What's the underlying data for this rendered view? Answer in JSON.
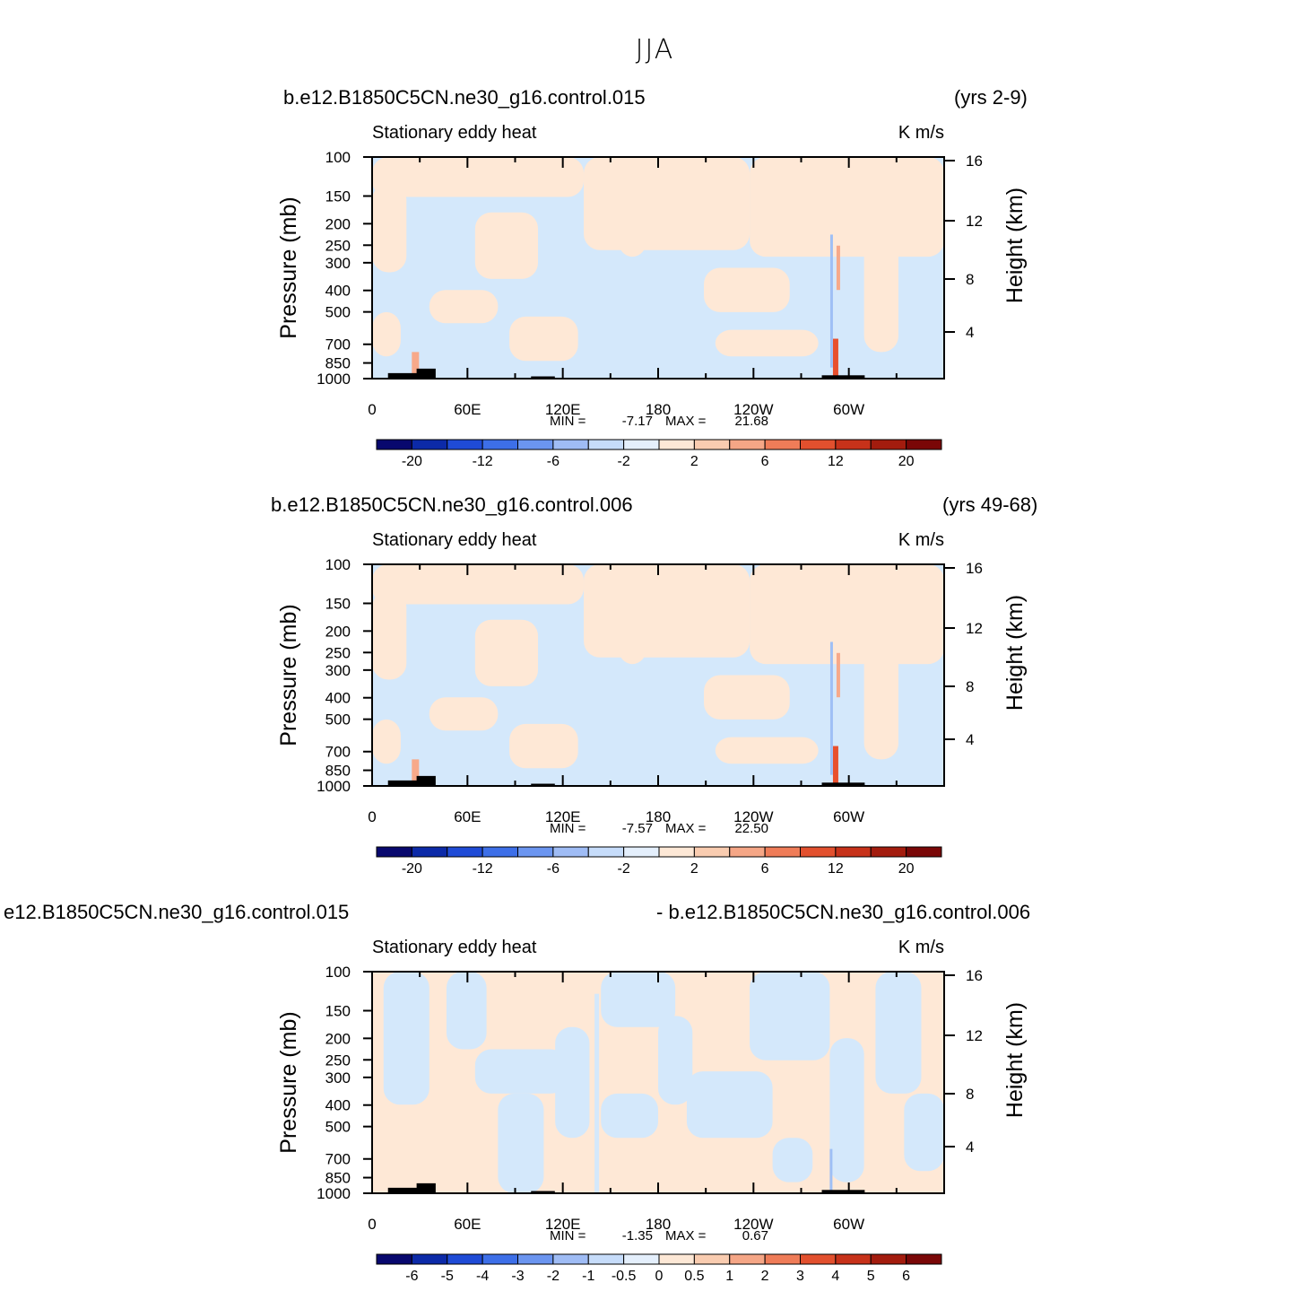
{
  "main_title": "JJA",
  "colors": {
    "neg_light": "#d4e8fb",
    "pos_light": "#fee8d6",
    "neg_mid": "#9fbff5",
    "pos_mid": "#f7a98a",
    "pos_strong": "#e8502e",
    "topo": "#000000"
  },
  "panels": [
    {
      "case_left": "b.e12.B1850C5CN.ne30_g16.control.015",
      "case_right": "(yrs 2-9)",
      "stats": {
        "min_label": "MIN =",
        "min": "-7.17",
        "max_label": "MAX =",
        "max": "21.68"
      }
    },
    {
      "case_left": "b.e12.B1850C5CN.ne30_g16.control.006",
      "case_right": "(yrs 49-68)",
      "stats": {
        "min_label": "MIN =",
        "min": "-7.57",
        "max_label": "MAX =",
        "max": "22.50"
      }
    },
    {
      "case_left": "e12.B1850C5CN.ne30_g16.control.015",
      "case_right": "- b.e12.B1850C5CN.ne30_g16.control.006",
      "stats": {
        "min_label": "MIN =",
        "min": "-1.35",
        "max_label": "MAX =",
        "max": "0.67"
      }
    }
  ],
  "chart_data": [
    {
      "type": "heatmap",
      "title": "Stationary eddy heat",
      "units": "K m/s",
      "xlabel": "",
      "ylabel": "Pressure (mb)",
      "ylabel_right": "Height (km)",
      "x_ticks": [
        "0",
        "60E",
        "120E",
        "180",
        "120W",
        "60W"
      ],
      "x_range": [
        0,
        360
      ],
      "y_ticks": [
        "100",
        "150",
        "200",
        "250",
        "300",
        "400",
        "500",
        "700",
        "850",
        "1000"
      ],
      "y_range": [
        1000,
        100
      ],
      "y_right_ticks": [
        "16",
        "12",
        "8",
        "4"
      ],
      "colorbar_labels": [
        "-20",
        "-12",
        "-6",
        "-2",
        "2",
        "6",
        "12",
        "20"
      ],
      "min": -7.17,
      "max": 21.68
    },
    {
      "type": "heatmap",
      "title": "Stationary eddy heat",
      "units": "K m/s",
      "xlabel": "",
      "ylabel": "Pressure (mb)",
      "ylabel_right": "Height (km)",
      "x_ticks": [
        "0",
        "60E",
        "120E",
        "180",
        "120W",
        "60W"
      ],
      "x_range": [
        0,
        360
      ],
      "y_ticks": [
        "100",
        "150",
        "200",
        "250",
        "300",
        "400",
        "500",
        "700",
        "850",
        "1000"
      ],
      "y_range": [
        1000,
        100
      ],
      "y_right_ticks": [
        "16",
        "12",
        "8",
        "4"
      ],
      "colorbar_labels": [
        "-20",
        "-12",
        "-6",
        "-2",
        "2",
        "6",
        "12",
        "20"
      ],
      "min": -7.57,
      "max": 22.5
    },
    {
      "type": "heatmap",
      "title": "Stationary eddy heat",
      "units": "K m/s",
      "xlabel": "",
      "ylabel": "Pressure (mb)",
      "ylabel_right": "Height (km)",
      "x_ticks": [
        "0",
        "60E",
        "120E",
        "180",
        "120W",
        "60W"
      ],
      "x_range": [
        0,
        360
      ],
      "y_ticks": [
        "100",
        "150",
        "200",
        "250",
        "300",
        "400",
        "500",
        "700",
        "850",
        "1000"
      ],
      "y_range": [
        1000,
        100
      ],
      "y_right_ticks": [
        "16",
        "12",
        "8",
        "4"
      ],
      "colorbar_labels": [
        "-6",
        "-5",
        "-4",
        "-3",
        "-2",
        "-1",
        "-0.5",
        "0",
        "0.5",
        "1",
        "2",
        "3",
        "4",
        "5",
        "6"
      ],
      "min": -1.35,
      "max": 0.67
    }
  ],
  "colorbar_colors": [
    "#08086e",
    "#0c2aa8",
    "#1f4bd6",
    "#3d6fe8",
    "#6b95f0",
    "#9fbcf5",
    "#c6dcfa",
    "#e4effc",
    "#fde8d6",
    "#f9ccb0",
    "#f5a686",
    "#ef7c58",
    "#e2502e",
    "#c7321a",
    "#a31c0e",
    "#7a0707"
  ]
}
